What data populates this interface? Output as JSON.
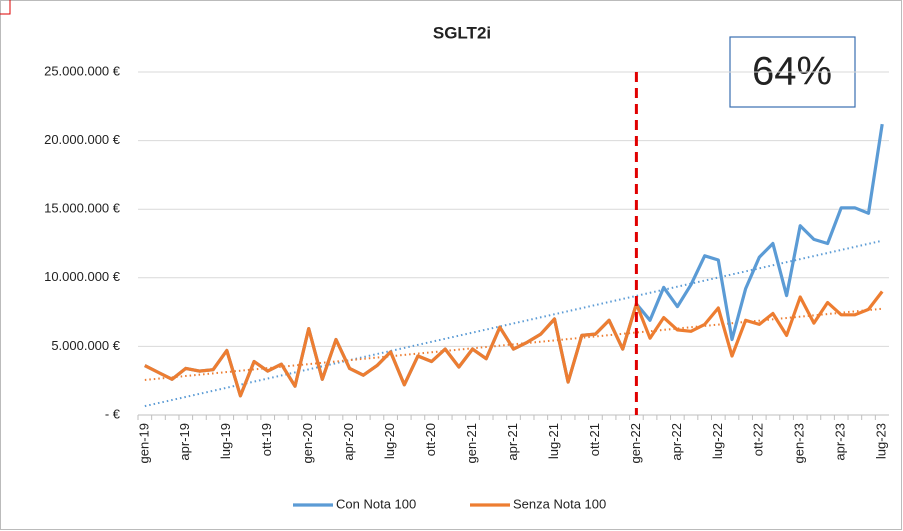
{
  "chart_data": {
    "type": "line",
    "title": "SGLT2i",
    "annotation": "64%",
    "categories": [
      "gen-19",
      null,
      null,
      "apr-19",
      null,
      null,
      "lug-19",
      null,
      null,
      "ott-19",
      null,
      null,
      "gen-20",
      null,
      null,
      "apr-20",
      null,
      null,
      "lug-20",
      null,
      null,
      "ott-20",
      null,
      null,
      "gen-21",
      null,
      null,
      "apr-21",
      null,
      null,
      "lug-21",
      null,
      null,
      "ott-21",
      null,
      null,
      "gen-22",
      null,
      null,
      "apr-22",
      null,
      null,
      "lug-22",
      null,
      null,
      "ott-22",
      null,
      null,
      "gen-23",
      null,
      null,
      "apr-23",
      null,
      null,
      "lug-23"
    ],
    "series": [
      {
        "name": "Con Nota 100",
        "color": "#5b9bd5",
        "trendline": true,
        "values": [
          3600000,
          3100000,
          2600000,
          3400000,
          3200000,
          3300000,
          4700000,
          1400000,
          3900000,
          3200000,
          3700000,
          2100000,
          6300000,
          2600000,
          5500000,
          3400000,
          2900000,
          3600000,
          4600000,
          2200000,
          4300000,
          3900000,
          4800000,
          3500000,
          4800000,
          4100000,
          6400000,
          4800000,
          5300000,
          5900000,
          7000000,
          2400000,
          5800000,
          5900000,
          6900000,
          4800000,
          8100000,
          6900000,
          9300000,
          7900000,
          9500000,
          11600000,
          11300000,
          5500000,
          9200000,
          11500000,
          12500000,
          8700000,
          13800000,
          12800000,
          12500000,
          15100000,
          15100000,
          14700000,
          21200000
        ]
      },
      {
        "name": "Senza Nota 100",
        "color": "#ed7d31",
        "trendline": true,
        "values": [
          3600000,
          3100000,
          2600000,
          3400000,
          3200000,
          3300000,
          4700000,
          1400000,
          3900000,
          3200000,
          3700000,
          2100000,
          6300000,
          2600000,
          5500000,
          3400000,
          2900000,
          3600000,
          4600000,
          2200000,
          4300000,
          3900000,
          4800000,
          3500000,
          4800000,
          4100000,
          6400000,
          4800000,
          5300000,
          5900000,
          7000000,
          2400000,
          5800000,
          5900000,
          6900000,
          4800000,
          8100000,
          5600000,
          7100000,
          6200000,
          6100000,
          6600000,
          7800000,
          4300000,
          6900000,
          6600000,
          7400000,
          5800000,
          8600000,
          6700000,
          8200000,
          7300000,
          7300000,
          7700000,
          9000000
        ]
      }
    ],
    "reference_line": {
      "category_index": 36,
      "color": "#e00000"
    },
    "ylim": [
      0,
      25000000
    ],
    "yticks": [
      {
        "value": 0,
        "label": "-   €"
      },
      {
        "value": 5000000,
        "label": "5.000.000 €"
      },
      {
        "value": 10000000,
        "label": "10.000.000 €"
      },
      {
        "value": 15000000,
        "label": "15.000.000 €"
      },
      {
        "value": 20000000,
        "label": "20.000.000 €"
      },
      {
        "value": 25000000,
        "label": "25.000.000 €"
      }
    ],
    "grid": true,
    "legend": "bottom"
  }
}
